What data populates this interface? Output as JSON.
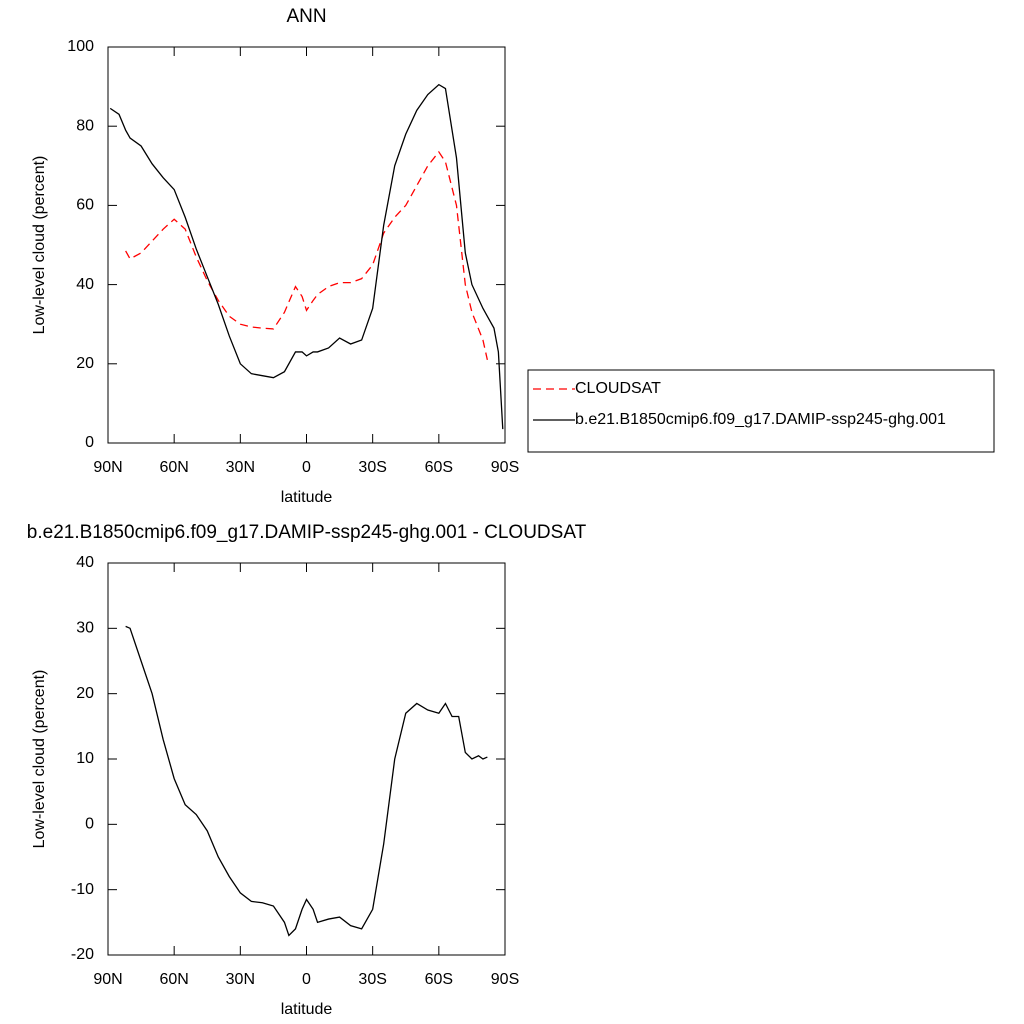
{
  "chart_data": [
    {
      "type": "line",
      "title": "ANN",
      "x_label": "latitude",
      "y_label": "Low-level cloud (percent)",
      "xlim": [
        90,
        -90
      ],
      "ylim": [
        0,
        100
      ],
      "xticks": [
        {
          "value": 90,
          "label": "90N"
        },
        {
          "value": 60,
          "label": "60N"
        },
        {
          "value": 30,
          "label": "30N"
        },
        0,
        {
          "value": -30,
          "label": "30S"
        },
        {
          "value": -60,
          "label": "60S"
        },
        {
          "value": -90,
          "label": "90S"
        }
      ],
      "yticks": [
        0,
        20,
        40,
        60,
        80,
        100
      ],
      "legend": "right",
      "x": [
        89,
        85,
        82,
        80,
        75,
        70,
        65,
        60,
        55,
        50,
        45,
        40,
        35,
        30,
        25,
        20,
        15,
        10,
        5,
        2,
        0,
        -3,
        -5,
        -10,
        -15,
        -20,
        -25,
        -30,
        -35,
        -40,
        -45,
        -50,
        -55,
        -60,
        -63,
        -68,
        -72,
        -75,
        -80,
        -82,
        -85,
        -87,
        -89
      ],
      "series": [
        {
          "name": "CLOUDSAT",
          "color": "#ff0000",
          "dashed": true,
          "values": [
            null,
            null,
            48.5,
            46.5,
            48,
            51,
            54,
            56.5,
            54,
            47,
            41,
            36,
            32,
            30,
            29.3,
            29,
            28.8,
            33,
            39.5,
            37,
            33.5,
            36,
            37.5,
            39.5,
            40.5,
            40.5,
            41.5,
            45,
            53,
            57,
            60,
            65,
            70,
            73.5,
            71,
            60,
            40,
            33,
            26,
            21,
            null,
            null,
            null
          ]
        },
        {
          "name": "b.e21.B1850cmip6.f09_g17.DAMIP-ssp245-ghg.001",
          "color": "#000000",
          "dashed": false,
          "values": [
            84.5,
            83,
            79,
            77,
            75,
            70.5,
            67,
            64,
            57,
            49,
            42,
            35,
            27,
            20,
            17.5,
            17,
            16.5,
            18,
            23,
            23,
            22,
            23,
            23,
            24,
            26.5,
            25,
            26,
            34,
            55,
            70,
            78,
            84,
            88,
            90.5,
            89.5,
            72,
            48,
            40,
            34,
            32,
            29,
            23,
            3.5
          ]
        }
      ]
    },
    {
      "type": "line",
      "title": "b.e21.B1850cmip6.f09_g17.DAMIP-ssp245-ghg.001 - CLOUDSAT",
      "x_label": "latitude",
      "y_label": "Low-level cloud (percent)",
      "xlim": [
        90,
        -90
      ],
      "ylim": [
        -20,
        40
      ],
      "xticks": [
        {
          "value": 90,
          "label": "90N"
        },
        {
          "value": 60,
          "label": "60N"
        },
        {
          "value": 30,
          "label": "30N"
        },
        0,
        {
          "value": -30,
          "label": "30S"
        },
        {
          "value": -60,
          "label": "60S"
        },
        {
          "value": -90,
          "label": "90S"
        }
      ],
      "yticks": [
        -20,
        -10,
        0,
        10,
        20,
        30,
        40
      ],
      "x": [
        82,
        80,
        75,
        70,
        65,
        60,
        55,
        50,
        45,
        40,
        35,
        30,
        25,
        20,
        15,
        10,
        8,
        5,
        2,
        0,
        -3,
        -5,
        -10,
        -15,
        -20,
        -25,
        -30,
        -35,
        -40,
        -45,
        -50,
        -55,
        -60,
        -63,
        -66,
        -69,
        -72,
        -75,
        -78,
        -80,
        -82
      ],
      "series": [
        {
          "color": "#000000",
          "dashed": false,
          "values": [
            30.3,
            30,
            25,
            20,
            13,
            7,
            3,
            1.5,
            -1,
            -5,
            -8,
            -10.5,
            -11.8,
            -12,
            -12.5,
            -15,
            -17,
            -16,
            -13,
            -11.5,
            -13,
            -15,
            -14.5,
            -14.2,
            -15.5,
            -16,
            -13,
            -3,
            10,
            17,
            18.5,
            17.5,
            17,
            18.5,
            16.5,
            16.5,
            11,
            10,
            10.5,
            10,
            10.3
          ]
        }
      ]
    }
  ]
}
